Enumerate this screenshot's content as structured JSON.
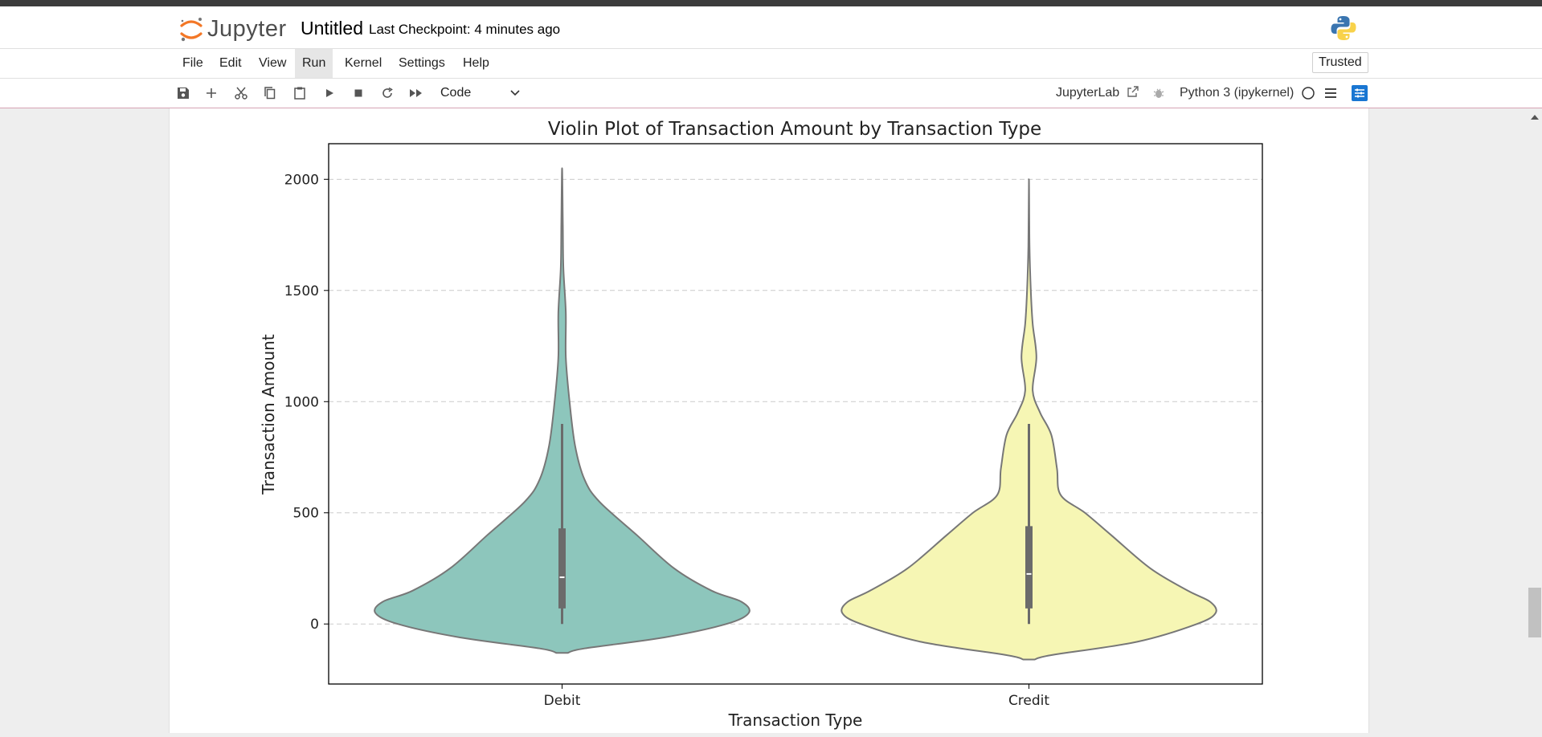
{
  "app": {
    "logo_text": "Jupyter",
    "notebook_title": "Untitled",
    "checkpoint": "Last Checkpoint: 4 minutes ago"
  },
  "menubar": {
    "items": [
      "File",
      "Edit",
      "View",
      "Run",
      "Kernel",
      "Settings",
      "Help"
    ],
    "active": "Run",
    "trusted": "Trusted"
  },
  "toolbar": {
    "cell_type": "Code",
    "jupyterlab_link": "JupyterLab",
    "kernel_name": "Python 3 (ipykernel)"
  },
  "colors": {
    "debit_fill": "#8dc6bc",
    "credit_fill": "#f6f6b4",
    "violin_edge": "#777777",
    "kernel_indicator": "#1976d2"
  },
  "chart_data": {
    "type": "violin",
    "title": "Violin Plot of Transaction Amount by Transaction Type",
    "xlabel": "Transaction Type",
    "ylabel": "Transaction Amount",
    "categories": [
      "Debit",
      "Credit"
    ],
    "ylim": [
      -270,
      2160
    ],
    "yticks": [
      0,
      500,
      1000,
      1500,
      2000
    ],
    "grid": "y dashed",
    "series": [
      {
        "name": "Debit",
        "color": "#8dc6bc",
        "median": 210,
        "q1": 70,
        "q3": 430,
        "whisker_low": 0,
        "whisker_high": 900,
        "density_profile": [
          {
            "y": -130,
            "w": 0.03
          },
          {
            "y": -110,
            "w": 0.12
          },
          {
            "y": -60,
            "w": 0.55
          },
          {
            "y": 0,
            "w": 0.88
          },
          {
            "y": 50,
            "w": 1.0
          },
          {
            "y": 100,
            "w": 0.96
          },
          {
            "y": 150,
            "w": 0.8
          },
          {
            "y": 250,
            "w": 0.6
          },
          {
            "y": 400,
            "w": 0.4
          },
          {
            "y": 550,
            "w": 0.2
          },
          {
            "y": 650,
            "w": 0.12
          },
          {
            "y": 800,
            "w": 0.07
          },
          {
            "y": 1000,
            "w": 0.04
          },
          {
            "y": 1200,
            "w": 0.02
          },
          {
            "y": 1400,
            "w": 0.02
          },
          {
            "y": 1600,
            "w": 0.007
          },
          {
            "y": 1800,
            "w": 0.004
          },
          {
            "y": 2050,
            "w": 0.0
          }
        ]
      },
      {
        "name": "Credit",
        "color": "#f6f6b4",
        "median": 225,
        "q1": 70,
        "q3": 440,
        "whisker_low": 0,
        "whisker_high": 900,
        "density_profile": [
          {
            "y": -160,
            "w": 0.03
          },
          {
            "y": -140,
            "w": 0.12
          },
          {
            "y": -80,
            "w": 0.58
          },
          {
            "y": 0,
            "w": 0.9
          },
          {
            "y": 50,
            "w": 1.0
          },
          {
            "y": 100,
            "w": 0.97
          },
          {
            "y": 150,
            "w": 0.85
          },
          {
            "y": 250,
            "w": 0.65
          },
          {
            "y": 400,
            "w": 0.44
          },
          {
            "y": 500,
            "w": 0.3
          },
          {
            "y": 580,
            "w": 0.17
          },
          {
            "y": 700,
            "w": 0.15
          },
          {
            "y": 850,
            "w": 0.12
          },
          {
            "y": 950,
            "w": 0.06
          },
          {
            "y": 1050,
            "w": 0.02
          },
          {
            "y": 1200,
            "w": 0.04
          },
          {
            "y": 1350,
            "w": 0.02
          },
          {
            "y": 1500,
            "w": 0.01
          },
          {
            "y": 1700,
            "w": 0.003
          },
          {
            "y": 2000,
            "w": 0.0
          }
        ]
      }
    ]
  }
}
